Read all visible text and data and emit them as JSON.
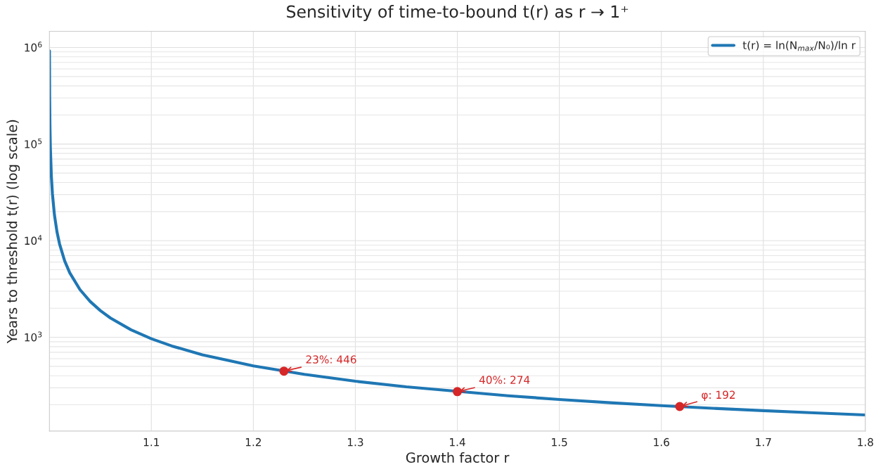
{
  "chart_data": {
    "type": "line",
    "title": "Sensitivity of time-to-bound t(r) as r → 1⁺",
    "xlabel": "Growth factor r",
    "ylabel": "Years to threshold t(r) (log scale)",
    "series": [
      {
        "name": "t(r) = ln(N$_{max}$/N₀)/ln r",
        "color": "#1f77b4",
        "x": [
          1.0001,
          1.0003,
          1.0006,
          1.001,
          1.002,
          1.003,
          1.005,
          1.0075,
          1.01,
          1.015,
          1.02,
          1.03,
          1.04,
          1.05,
          1.06,
          1.08,
          1.1,
          1.12,
          1.15,
          1.2,
          1.25,
          1.3,
          1.35,
          1.45,
          1.5,
          1.55,
          1.6,
          1.65,
          1.7,
          1.75,
          1.8
        ],
        "values": [
          921000,
          307000,
          153500,
          92150,
          46100,
          30750,
          18470,
          12330,
          9256,
          6186,
          4651,
          3116,
          2348,
          1888,
          1581,
          1197,
          966,
          813,
          659,
          505,
          413,
          351,
          307,
          248,
          227,
          210,
          196,
          184,
          174,
          165,
          157
        ]
      },
      {
        "type": "scatter",
        "color": "#d62728",
        "marker": "circle",
        "x": [
          1.23,
          1.4,
          1.618
        ],
        "values": [
          446,
          274,
          192
        ]
      }
    ],
    "annotations": [
      {
        "text": "23%: 446",
        "x": 1.23,
        "y": 446
      },
      {
        "text": "40%: 274",
        "x": 1.4,
        "y": 274
      },
      {
        "text": "φ: 192",
        "x": 1.618,
        "y": 192
      }
    ],
    "log": "y",
    "xlim": [
      1.0001,
      1.8
    ],
    "ylim": [
      107,
      1470000
    ],
    "xticks": [
      1.1,
      1.2,
      1.3,
      1.4,
      1.5,
      1.6,
      1.7,
      1.8
    ],
    "yticks": [
      {
        "value": 1000,
        "label": "10$^{3}$"
      },
      {
        "value": 10000,
        "label": "10$^{4}$"
      },
      {
        "value": 100000,
        "label": "10$^{5}$"
      },
      {
        "value": 1000000,
        "label": "10$^{6}$"
      }
    ],
    "grid": true,
    "legend": "top right",
    "marker": "none",
    "line_style": "solid"
  }
}
